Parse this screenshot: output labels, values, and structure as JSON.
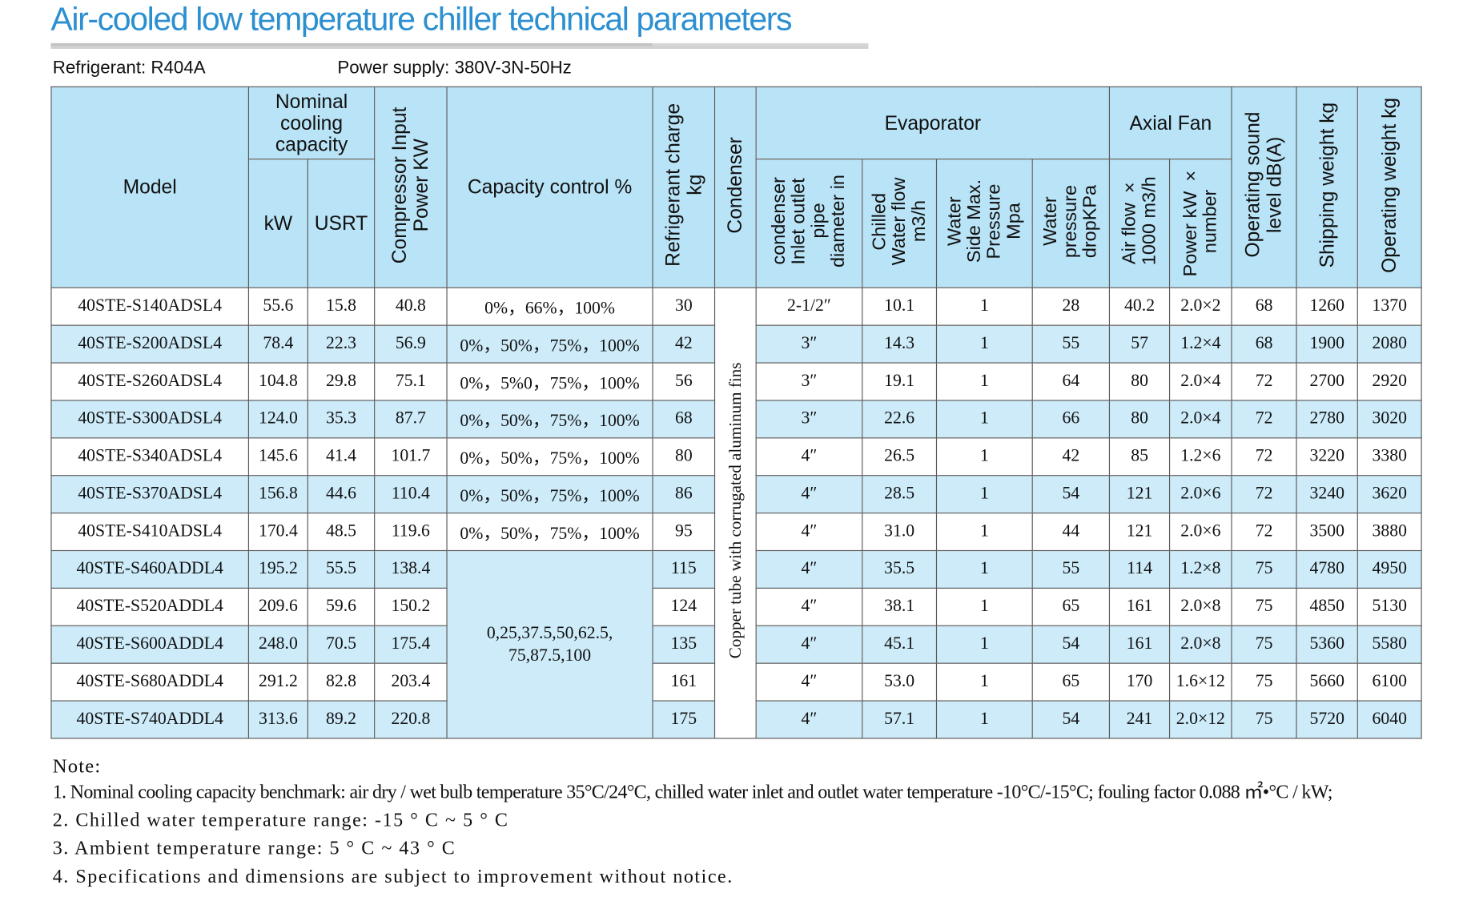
{
  "title": "Air-cooled low temperature chiller technical parameters",
  "refrigerant": "Refrigerant: R404A",
  "power_supply": "Power supply: 380V-3N-50Hz",
  "headers": {
    "model": "Model",
    "nominal_line1": "Nominal",
    "nominal_line2": "cooling",
    "nominal_line3": "capacity",
    "kw": "kW",
    "usrt": "USRT",
    "compressor_line1": "Compressor Input",
    "compressor_line2": "Power KW",
    "capacity_control": "Capacity control %",
    "refrigerant_line1": "Refrigerant charge",
    "refrigerant_line2": "kg",
    "condenser": "Condenser",
    "evaporator": "Evaporator",
    "pipe_line1": "condenser",
    "pipe_line2": "Inlet outlet",
    "pipe_line3": "pipe",
    "pipe_line4": "diameter in",
    "flow_line1": "Chilled",
    "flow_line2": "Water flow",
    "flow_line3": "m3/h",
    "pressure_line1": "Water",
    "pressure_line2": "Side Max.",
    "pressure_line3": "Pressure",
    "pressure_line4": "Mpa",
    "drop_line1": "Water",
    "drop_line2": "pressure",
    "drop_line3": "dropKPa",
    "axial_fan": "Axial Fan",
    "airflow_line1": "Air flow ×",
    "airflow_line2": "1000 m3/h",
    "power_line1": "Power kW ×",
    "power_line2": "number",
    "sound_line1": "Operating sound",
    "sound_line2": "level dB(A)",
    "shipping": "Shipping weight kg",
    "operating": "Operating weight kg"
  },
  "condenser_note": "Copper tube with corrugated aluminum fins",
  "capacity_merged_line1": "0,25,37.5,50,62.5,",
  "capacity_merged_line2": "75,87.5,100",
  "rows": [
    {
      "model": "40STE-S140ADSL4",
      "kw": "55.6",
      "usrt": "15.8",
      "comp": "40.8",
      "cap": "0%，66%，100%",
      "ref": "30",
      "pipe": "2-1/2″",
      "flow": "10.1",
      "press": "1",
      "drop": "28",
      "air": "40.2",
      "fan": "2.0×2",
      "sound": "68",
      "ship": "1260",
      "oper": "1370"
    },
    {
      "model": "40STE-S200ADSL4",
      "kw": "78.4",
      "usrt": "22.3",
      "comp": "56.9",
      "cap": "0%，50%，75%，100%",
      "ref": "42",
      "pipe": "3″",
      "flow": "14.3",
      "press": "1",
      "drop": "55",
      "air": "57",
      "fan": "1.2×4",
      "sound": "68",
      "ship": "1900",
      "oper": "2080"
    },
    {
      "model": "40STE-S260ADSL4",
      "kw": "104.8",
      "usrt": "29.8",
      "comp": "75.1",
      "cap": "0%，5%0，75%，100%",
      "ref": "56",
      "pipe": "3″",
      "flow": "19.1",
      "press": "1",
      "drop": "64",
      "air": "80",
      "fan": "2.0×4",
      "sound": "72",
      "ship": "2700",
      "oper": "2920"
    },
    {
      "model": "40STE-S300ADSL4",
      "kw": "124.0",
      "usrt": "35.3",
      "comp": "87.7",
      "cap": "0%，50%，75%，100%",
      "ref": "68",
      "pipe": "3″",
      "flow": "22.6",
      "press": "1",
      "drop": "66",
      "air": "80",
      "fan": "2.0×4",
      "sound": "72",
      "ship": "2780",
      "oper": "3020"
    },
    {
      "model": "40STE-S340ADSL4",
      "kw": "145.6",
      "usrt": "41.4",
      "comp": "101.7",
      "cap": "0%，50%，75%，100%",
      "ref": "80",
      "pipe": "4″",
      "flow": "26.5",
      "press": "1",
      "drop": "42",
      "air": "85",
      "fan": "1.2×6",
      "sound": "72",
      "ship": "3220",
      "oper": "3380"
    },
    {
      "model": "40STE-S370ADSL4",
      "kw": "156.8",
      "usrt": "44.6",
      "comp": "110.4",
      "cap": "0%，50%，75%，100%",
      "ref": "86",
      "pipe": "4″",
      "flow": "28.5",
      "press": "1",
      "drop": "54",
      "air": "121",
      "fan": "2.0×6",
      "sound": "72",
      "ship": "3240",
      "oper": "3620"
    },
    {
      "model": "40STE-S410ADSL4",
      "kw": "170.4",
      "usrt": "48.5",
      "comp": "119.6",
      "cap": "0%，50%，75%，100%",
      "ref": "95",
      "pipe": "4″",
      "flow": "31.0",
      "press": "1",
      "drop": "44",
      "air": "121",
      "fan": "2.0×6",
      "sound": "72",
      "ship": "3500",
      "oper": "3880"
    },
    {
      "model": "40STE-S460ADDL4",
      "kw": "195.2",
      "usrt": "55.5",
      "comp": "138.4",
      "cap": "",
      "ref": "115",
      "pipe": "4″",
      "flow": "35.5",
      "press": "1",
      "drop": "55",
      "air": "114",
      "fan": "1.2×8",
      "sound": "75",
      "ship": "4780",
      "oper": "4950"
    },
    {
      "model": "40STE-S520ADDL4",
      "kw": "209.6",
      "usrt": "59.6",
      "comp": "150.2",
      "cap": "",
      "ref": "124",
      "pipe": "4″",
      "flow": "38.1",
      "press": "1",
      "drop": "65",
      "air": "161",
      "fan": "2.0×8",
      "sound": "75",
      "ship": "4850",
      "oper": "5130"
    },
    {
      "model": "40STE-S600ADDL4",
      "kw": "248.0",
      "usrt": "70.5",
      "comp": "175.4",
      "cap": "",
      "ref": "135",
      "pipe": "4″",
      "flow": "45.1",
      "press": "1",
      "drop": "54",
      "air": "161",
      "fan": "2.0×8",
      "sound": "75",
      "ship": "5360",
      "oper": "5580"
    },
    {
      "model": "40STE-S680ADDL4",
      "kw": "291.2",
      "usrt": "82.8",
      "comp": "203.4",
      "cap": "",
      "ref": "161",
      "pipe": "4″",
      "flow": "53.0",
      "press": "1",
      "drop": "65",
      "air": "170",
      "fan": "1.6×12",
      "sound": "75",
      "ship": "5660",
      "oper": "6100"
    },
    {
      "model": "40STE-S740ADDL4",
      "kw": "313.6",
      "usrt": "89.2",
      "comp": "220.8",
      "cap": "",
      "ref": "175",
      "pipe": "4″",
      "flow": "57.1",
      "press": "1",
      "drop": "54",
      "air": "241",
      "fan": "2.0×12",
      "sound": "75",
      "ship": "5720",
      "oper": "6040"
    }
  ],
  "notes": {
    "heading": "Note:",
    "n1": "1. Nominal cooling capacity benchmark: air dry / wet bulb temperature 35°C/24°C, chilled water inlet and outlet water temperature -10°C/-15°C; fouling factor 0.088 ㎡•°C / kW;",
    "n2": "2. Chilled water temperature range: -15 ° C ~ 5 ° C",
    "n3": "3. Ambient temperature range: 5 ° C ~ 43 ° C",
    "n4": "4. Specifications and dimensions are subject to improvement without notice."
  }
}
